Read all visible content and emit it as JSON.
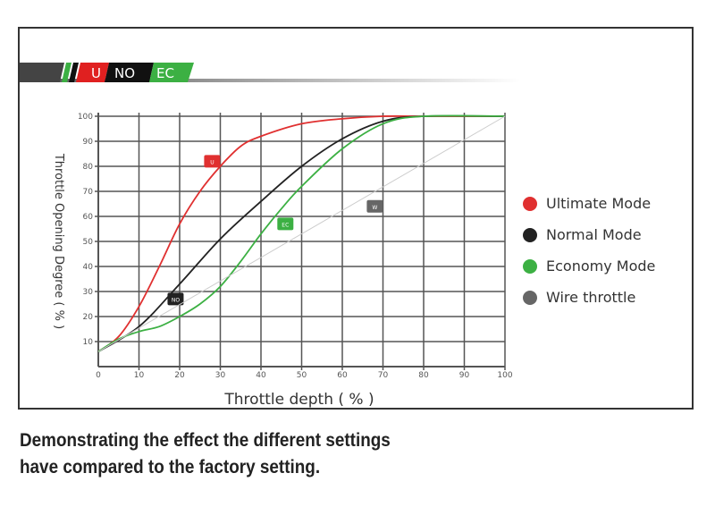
{
  "banner": {
    "u": "U",
    "no": "NO",
    "ec": "EC"
  },
  "caption": [
    "Demonstrating the effect the different settings",
    "have compared to the factory setting."
  ],
  "chart_data": {
    "type": "line",
    "title": "",
    "xlabel": "Throttle depth ( % )",
    "ylabel": "Throttle Opening Degree ( % )",
    "xlim": [
      0,
      100
    ],
    "ylim": [
      0,
      100
    ],
    "xticks": [
      0,
      10,
      20,
      30,
      40,
      50,
      60,
      70,
      80,
      90,
      100
    ],
    "yticks": [
      10,
      20,
      30,
      40,
      50,
      60,
      70,
      80,
      90,
      100
    ],
    "grid": true,
    "legend_placement": "right",
    "series": [
      {
        "name": "Ultimate Mode",
        "marker": "U",
        "color": "#e03030",
        "label_at": [
          28,
          82
        ],
        "x": [
          0,
          5,
          10,
          15,
          20,
          25,
          30,
          35,
          40,
          50,
          60,
          70,
          80,
          100
        ],
        "y": [
          6,
          12,
          24,
          40,
          57,
          70,
          80,
          88,
          92,
          97,
          99,
          100,
          100,
          100
        ]
      },
      {
        "name": "Normal Mode",
        "marker": "NO",
        "color": "#222222",
        "label_at": [
          19,
          27
        ],
        "x": [
          0,
          10,
          20,
          30,
          40,
          50,
          60,
          70,
          80,
          100
        ],
        "y": [
          6,
          16,
          33,
          51,
          66,
          80,
          91,
          98,
          100,
          100
        ]
      },
      {
        "name": "Economy Mode",
        "marker": "EC",
        "color": "#3cb043",
        "label_at": [
          46,
          57
        ],
        "x": [
          0,
          5,
          10,
          15,
          20,
          25,
          30,
          35,
          40,
          45,
          50,
          60,
          70,
          80,
          100
        ],
        "y": [
          6,
          11,
          14,
          16,
          20,
          25,
          32,
          42,
          53,
          63,
          72,
          87,
          97,
          100,
          100
        ]
      },
      {
        "name": "Wire throttle",
        "marker": "W",
        "color": "#cccccc",
        "label_at": [
          68,
          64
        ],
        "x": [
          0,
          100
        ],
        "y": [
          6,
          100
        ]
      }
    ]
  }
}
